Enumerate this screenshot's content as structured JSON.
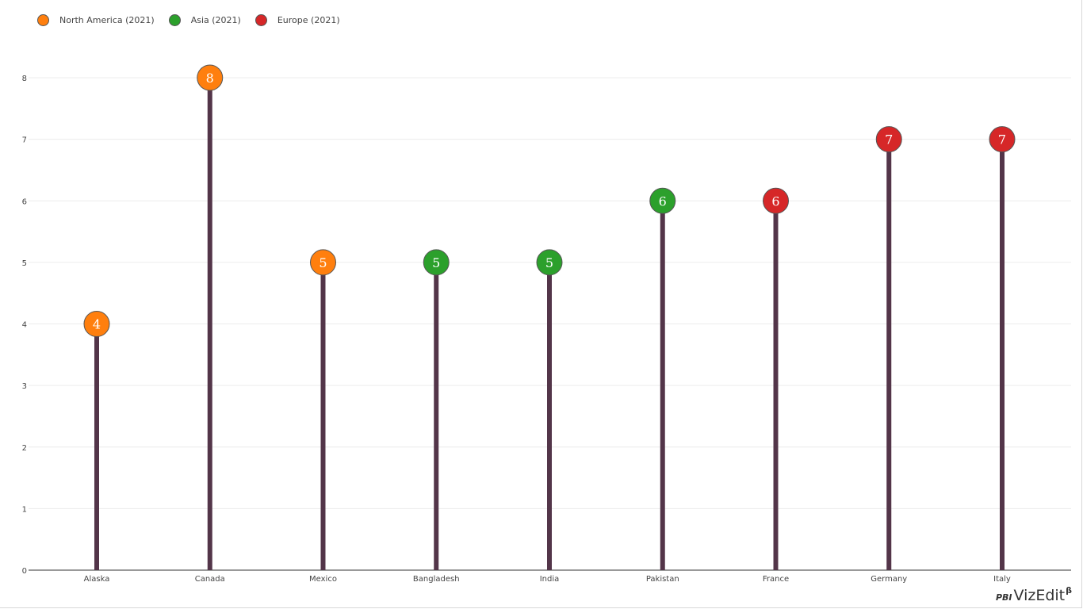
{
  "legend": [
    {
      "label": "North America (2021)",
      "color": "#ff7f0e"
    },
    {
      "label": "Asia (2021)",
      "color": "#2ca02c"
    },
    {
      "label": "Europe (2021)",
      "color": "#d62728"
    }
  ],
  "chart_data": {
    "type": "lollipop",
    "categories": [
      "Alaska",
      "Canada",
      "Mexico",
      "Bangladesh",
      "India",
      "Pakistan",
      "France",
      "Germany",
      "Italy"
    ],
    "values": [
      4,
      8,
      5,
      5,
      5,
      6,
      6,
      7,
      7
    ],
    "groups": [
      "North America (2021)",
      "North America (2021)",
      "North America (2021)",
      "Asia (2021)",
      "Asia (2021)",
      "Asia (2021)",
      "Europe (2021)",
      "Europe (2021)",
      "Europe (2021)"
    ],
    "group_colors": {
      "North America (2021)": "#ff7f0e",
      "Asia (2021)": "#2ca02c",
      "Europe (2021)": "#d62728"
    },
    "stem_color": "#533549",
    "ylim": [
      0,
      8
    ],
    "yticks": [
      0,
      1,
      2,
      3,
      4,
      5,
      6,
      7,
      8
    ],
    "grid": true,
    "legend_position": "top-left",
    "data_labels": true
  },
  "watermark": {
    "prefix": "PBI",
    "main": "VizEdit",
    "superscript": "β"
  }
}
